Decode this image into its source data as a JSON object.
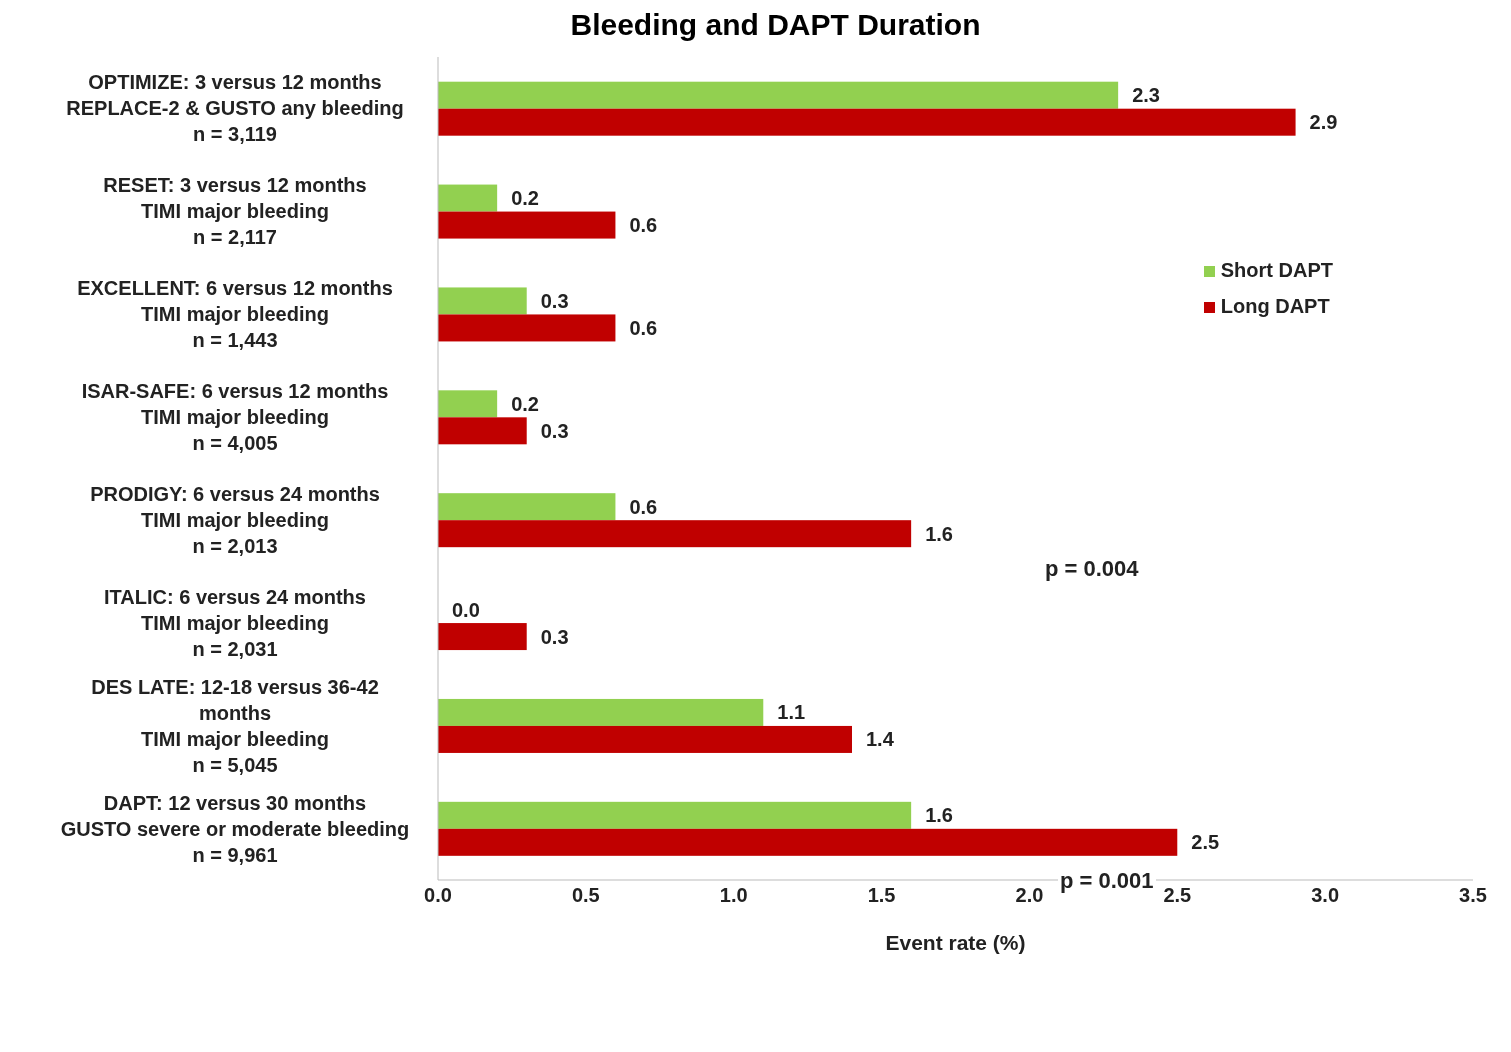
{
  "chart_data": {
    "type": "bar",
    "orientation": "horizontal",
    "title": "Bleeding and DAPT Duration",
    "xlabel": "Event rate (%)",
    "categories": [
      "OPTIMIZE: 3 versus 12 months\nREPLACE-2 & GUSTO any bleeding\nn = 3,119",
      "RESET: 3 versus 12 months\nTIMI major bleeding\nn = 2,117",
      "EXCELLENT: 6 versus 12 months\nTIMI major bleeding\nn = 1,443",
      "ISAR-SAFE: 6 versus 12 months\nTIMI major bleeding\nn = 4,005",
      "PRODIGY: 6 versus 24 months\nTIMI major bleeding\nn = 2,013",
      "ITALIC: 6 versus 24 months\nTIMI major bleeding\nn = 2,031",
      "DES LATE: 12-18 versus 36-42\nmonths\nTIMI major bleeding\nn = 5,045",
      "DAPT: 12 versus 30 months\nGUSTO severe or moderate bleeding\nn = 9,961"
    ],
    "series": [
      {
        "name": "Short DAPT",
        "color": "#92d050",
        "values": [
          2.3,
          0.2,
          0.3,
          0.2,
          0.6,
          0.0,
          1.1,
          1.6
        ],
        "value_labels": [
          "2.3",
          "0.2",
          "0.3",
          "0.2",
          "0.6",
          "0.0",
          "1.1",
          "1.6"
        ]
      },
      {
        "name": "Long DAPT",
        "color": "#c00000",
        "values": [
          2.9,
          0.6,
          0.6,
          0.3,
          1.6,
          0.3,
          1.4,
          2.5
        ],
        "value_labels": [
          "2.9",
          "0.6",
          "0.6",
          "0.3",
          "1.6",
          "0.3",
          "1.4",
          "2.5"
        ]
      }
    ],
    "xlim": [
      0,
      3.5
    ],
    "xticks": [
      {
        "value": 0,
        "label": "0.0"
      },
      {
        "value": 0.5,
        "label": "0.5"
      },
      {
        "value": 1,
        "label": "1.0"
      },
      {
        "value": 1.5,
        "label": "1.5"
      },
      {
        "value": 2,
        "label": "2.0"
      },
      {
        "value": 2.5,
        "label": "2.5"
      },
      {
        "value": 3,
        "label": "3.0"
      },
      {
        "value": 3.5,
        "label": "3.5"
      }
    ],
    "annotations": [
      "p = 0.004",
      "p = 0.001"
    ],
    "grid": false,
    "legend": "top right"
  }
}
